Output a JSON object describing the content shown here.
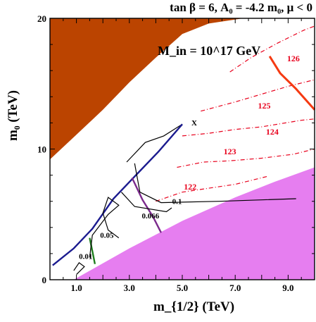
{
  "chart_data": {
    "type": "contour",
    "title": "tan β = 6, A₀ = -4.2 m₀, μ < 0",
    "annotation": "M_in = 10^17 GeV",
    "marker": "X",
    "xlabel": "m_{1/2} (TeV)",
    "ylabel": "m₀ (TeV)",
    "xlim": [
      0,
      10
    ],
    "ylim": [
      0,
      20
    ],
    "xticks": [
      {
        "value": 1.0,
        "label": "1.0"
      },
      {
        "value": 3.0,
        "label": "3.0"
      },
      {
        "value": 5.0,
        "label": "5.0"
      },
      {
        "value": 7.0,
        "label": "7.0"
      },
      {
        "value": 9.0,
        "label": "9.0"
      }
    ],
    "yticks": [
      {
        "value": 0,
        "label": "0"
      },
      {
        "value": 10,
        "label": "10"
      },
      {
        "value": 20,
        "label": "20"
      }
    ],
    "regions": [
      {
        "kind": "excluded-upper",
        "color": "#bb4400",
        "boundary": [
          [
            0,
            9.2
          ],
          [
            1,
            11.1
          ],
          [
            2,
            13
          ],
          [
            3,
            15.1
          ],
          [
            4,
            17
          ],
          [
            5,
            18.8
          ],
          [
            6,
            19.6
          ],
          [
            7.3,
            20
          ],
          [
            0,
            20
          ]
        ]
      },
      {
        "kind": "excluded-lower",
        "color": "#e67ef0",
        "boundary": [
          [
            0.9,
            0
          ],
          [
            3,
            2.4
          ],
          [
            5,
            4.5
          ],
          [
            7,
            6.3
          ],
          [
            8.5,
            7.5
          ],
          [
            10,
            8.6
          ],
          [
            10,
            0
          ]
        ]
      }
    ],
    "higgs_mass_contours": [
      {
        "label": "122",
        "points": [
          [
            4.0,
            6.0
          ],
          [
            5.0,
            6.7
          ],
          [
            6.0,
            7.0
          ],
          [
            7.0,
            7.3
          ],
          [
            8.2,
            7.9
          ]
        ]
      },
      {
        "label": "123",
        "points": [
          [
            4.8,
            8.6
          ],
          [
            5.8,
            9.0
          ],
          [
            6.8,
            9.1
          ],
          [
            8.0,
            9.3
          ],
          [
            9.2,
            9.6
          ],
          [
            10,
            10.0
          ]
        ]
      },
      {
        "label": "124",
        "points": [
          [
            5.0,
            11.0
          ],
          [
            6.0,
            11.2
          ],
          [
            7.0,
            11.5
          ],
          [
            8.0,
            11.7
          ],
          [
            9.5,
            12.2
          ],
          [
            10,
            12.3
          ]
        ]
      },
      {
        "label": "125",
        "points": [
          [
            5.7,
            12.9
          ],
          [
            7.0,
            13.6
          ],
          [
            8.0,
            14.2
          ],
          [
            9.0,
            14.8
          ],
          [
            10,
            15.3
          ]
        ]
      },
      {
        "label": "126",
        "points": [
          [
            6.8,
            15.9
          ],
          [
            7.6,
            17.0
          ],
          [
            8.6,
            18.1
          ],
          [
            9.6,
            19.1
          ],
          [
            10,
            19.4
          ]
        ]
      }
    ],
    "mh_126_solid": [
      [
        8.3,
        17.1
      ],
      [
        8.7,
        15.8
      ],
      [
        9.3,
        14.6
      ],
      [
        10,
        13.0
      ]
    ],
    "dm_contours": [
      {
        "label": "0.01",
        "color": "#000000",
        "points": [
          [
            0.9,
            0.7
          ],
          [
            1.1,
            1.3
          ],
          [
            1.3,
            1.0
          ],
          [
            1.0,
            0.4
          ]
        ]
      },
      {
        "label": "0.05",
        "color": "#000000",
        "points": [
          [
            1.5,
            1.7
          ],
          [
            1.6,
            3.4
          ],
          [
            2.2,
            5.0
          ],
          [
            2.6,
            5.7
          ],
          [
            2.2,
            6.3
          ],
          [
            2.0,
            5.1
          ],
          [
            2.2,
            3.8
          ],
          [
            2.6,
            3.2
          ]
        ]
      },
      {
        "label": "0.066",
        "color": "#000000",
        "points": [
          [
            2.7,
            6.7
          ],
          [
            3.2,
            5.6
          ],
          [
            4.4,
            5.2
          ],
          [
            4.6,
            5.5
          ]
        ]
      },
      {
        "label": "0.1",
        "color": "#000000",
        "points": [
          [
            3.2,
            8.9
          ],
          [
            3.4,
            6.7
          ],
          [
            4.2,
            5.9
          ],
          [
            6.4,
            6.0
          ],
          [
            9.3,
            6.2
          ]
        ]
      }
    ],
    "other_lines": [
      {
        "color": "#000000",
        "points": [
          [
            2.9,
            9.0
          ],
          [
            3.6,
            10.5
          ],
          [
            4.3,
            11.0
          ],
          [
            5.0,
            11.9
          ]
        ]
      },
      {
        "color": "#1b1b8f",
        "points": [
          [
            0.1,
            1.1
          ],
          [
            0.9,
            2.4
          ],
          [
            1.6,
            3.9
          ],
          [
            2.4,
            6.2
          ],
          [
            3.2,
            7.9
          ],
          [
            4.1,
            9.8
          ],
          [
            5.0,
            11.9
          ]
        ]
      },
      {
        "color": "#7b2a8c",
        "points": [
          [
            3.1,
            7.8
          ],
          [
            3.5,
            6.1
          ],
          [
            3.9,
            4.8
          ],
          [
            4.2,
            3.6
          ]
        ]
      },
      {
        "color": "#1e7d1e",
        "points": [
          [
            1.5,
            3.2
          ],
          [
            1.6,
            2.2
          ],
          [
            1.7,
            1.2
          ]
        ]
      }
    ],
    "marker_position": [
      5.4,
      12.5
    ]
  }
}
